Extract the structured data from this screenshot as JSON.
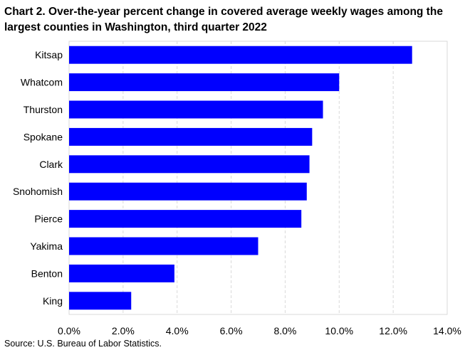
{
  "chart_data": {
    "type": "bar",
    "orientation": "horizontal",
    "title": "Chart 2. Over-the-year percent change in covered average weekly wages among the largest counties in Washington, third quarter 2022",
    "source": "Source: U.S. Bureau of Labor Statistics.",
    "categories": [
      "Kitsap",
      "Whatcom",
      "Thurston",
      "Spokane",
      "Clark",
      "Snohomish",
      "Pierce",
      "Yakima",
      "Benton",
      "King"
    ],
    "values": [
      12.7,
      10.0,
      9.4,
      9.0,
      8.9,
      8.8,
      8.6,
      7.0,
      3.9,
      2.3
    ],
    "xlim": [
      0,
      14
    ],
    "xticks": [
      0,
      2,
      4,
      6,
      8,
      10,
      12,
      14
    ],
    "tick_labels": [
      "0.0%",
      "2.0%",
      "4.0%",
      "6.0%",
      "8.0%",
      "10.0%",
      "12.0%",
      "14.0%"
    ],
    "grid": "vertical-dashed",
    "bar_color": "#0000ff"
  }
}
